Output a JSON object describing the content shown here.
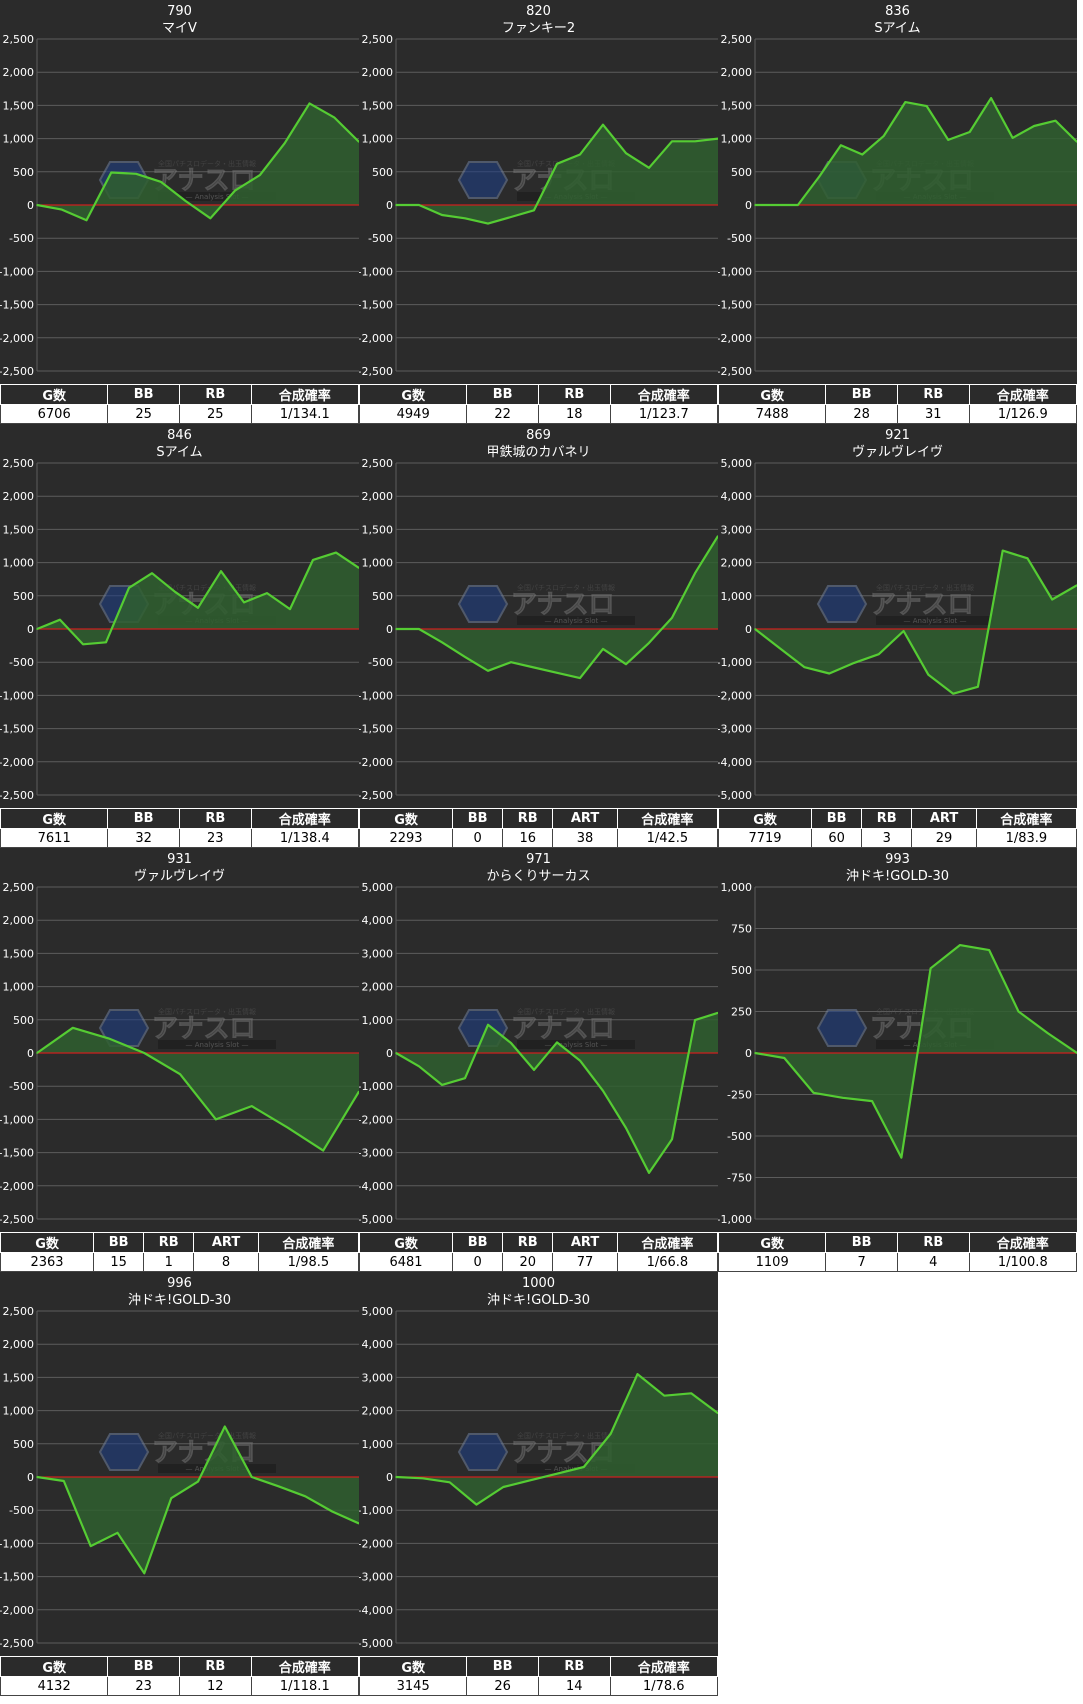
{
  "colors": {
    "panel_bg": "#2b2b2b",
    "grid": "#5c5c5c",
    "zero_line": "#cc1f1f",
    "line": "#55cc33",
    "fill": "#2f5f2f",
    "text": "#ffffff"
  },
  "watermark": {
    "text": "アナスロ",
    "subtitle": "Analysis Slot",
    "tagline": "全国パチスロデータ・出玉情報"
  },
  "panels": [
    {
      "number": "790",
      "machine": "マイV",
      "headers": [
        "G数",
        "BB",
        "RB",
        "合成確率"
      ],
      "values": [
        "6706",
        "25",
        "25",
        "1/134.1"
      ],
      "chart_data": {
        "type": "area",
        "ylim": [
          -2500,
          2500
        ],
        "yticks": [
          2500,
          2000,
          1500,
          1000,
          500,
          0,
          -500,
          -1000,
          -1500,
          -2000,
          -2500
        ],
        "ytick_labels": [
          "2,500",
          "2,000",
          "1,500",
          "1,000",
          "500",
          "0",
          "-500",
          "-1,000",
          "-1,500",
          "-2,000",
          "-2,500"
        ],
        "values": [
          0,
          -70,
          -230,
          490,
          470,
          350,
          60,
          -200,
          220,
          450,
          930,
          1530,
          1320,
          950
        ]
      }
    },
    {
      "number": "820",
      "machine": "ファンキー2",
      "headers": [
        "G数",
        "BB",
        "RB",
        "合成確率"
      ],
      "values": [
        "4949",
        "22",
        "18",
        "1/123.7"
      ],
      "chart_data": {
        "type": "area",
        "ylim": [
          -2500,
          2500
        ],
        "yticks": [
          2500,
          2000,
          1500,
          1000,
          500,
          0,
          -500,
          -1000,
          -1500,
          -2000,
          -2500
        ],
        "ytick_labels": [
          "2,500",
          "2,000",
          "1,500",
          "1,000",
          "500",
          "0",
          "-500",
          "-1,000",
          "-1,500",
          "-2,000",
          "-2,500"
        ],
        "values": [
          0,
          0,
          -150,
          -200,
          -280,
          -180,
          -80,
          620,
          760,
          1210,
          780,
          560,
          960,
          960,
          1000
        ]
      }
    },
    {
      "number": "836",
      "machine": "Sアイム",
      "headers": [
        "G数",
        "BB",
        "RB",
        "合成確率"
      ],
      "values": [
        "7488",
        "28",
        "31",
        "1/126.9"
      ],
      "chart_data": {
        "type": "area",
        "ylim": [
          -2500,
          2500
        ],
        "yticks": [
          2500,
          2000,
          1500,
          1000,
          500,
          0,
          -500,
          -1000,
          -1500,
          -2000,
          -2500
        ],
        "ytick_labels": [
          "2,500",
          "2,000",
          "1,500",
          "1,000",
          "500",
          "0",
          "-500",
          "-1,000",
          "-1,500",
          "-2,000",
          "-2,500"
        ],
        "values": [
          0,
          0,
          0,
          430,
          900,
          760,
          1040,
          1550,
          1490,
          980,
          1100,
          1610,
          1010,
          1190,
          1270,
          950
        ]
      }
    },
    {
      "number": "846",
      "machine": "Sアイム",
      "headers": [
        "G数",
        "BB",
        "RB",
        "合成確率"
      ],
      "values": [
        "7611",
        "32",
        "23",
        "1/138.4"
      ],
      "chart_data": {
        "type": "area",
        "ylim": [
          -2500,
          2500
        ],
        "yticks": [
          2500,
          2000,
          1500,
          1000,
          500,
          0,
          -500,
          -1000,
          -1500,
          -2000,
          -2500
        ],
        "ytick_labels": [
          "2,500",
          "2,000",
          "1,500",
          "1,000",
          "500",
          "0",
          "-500",
          "-1,000",
          "-1,500",
          "-2,000",
          "-2,500"
        ],
        "values": [
          0,
          140,
          -230,
          -200,
          620,
          840,
          560,
          320,
          870,
          400,
          540,
          300,
          1040,
          1150,
          920
        ]
      }
    },
    {
      "number": "869",
      "machine": "甲鉄城のカバネリ",
      "headers": [
        "G数",
        "BB",
        "RB",
        "ART",
        "合成確率"
      ],
      "values": [
        "2293",
        "0",
        "16",
        "38",
        "1/42.5"
      ],
      "chart_data": {
        "type": "area",
        "ylim": [
          -2500,
          2500
        ],
        "yticks": [
          2500,
          2000,
          1500,
          1000,
          500,
          0,
          -500,
          -1000,
          -1500,
          -2000,
          -2500
        ],
        "ytick_labels": [
          "2,500",
          "2,000",
          "1,500",
          "1,000",
          "500",
          "0",
          "-500",
          "-1,000",
          "-1,500",
          "-2,000",
          "-2,500"
        ],
        "values": [
          0,
          0,
          -200,
          -420,
          -630,
          -500,
          -580,
          -660,
          -740,
          -300,
          -530,
          -210,
          170,
          840,
          1400
        ]
      }
    },
    {
      "number": "921",
      "machine": "ヴァルヴレイヴ",
      "headers": [
        "G数",
        "BB",
        "RB",
        "ART",
        "合成確率"
      ],
      "values": [
        "7719",
        "60",
        "3",
        "29",
        "1/83.9"
      ],
      "chart_data": {
        "type": "area",
        "ylim": [
          -5000,
          5000
        ],
        "yticks": [
          5000,
          4000,
          3000,
          2000,
          1000,
          0,
          -1000,
          -2000,
          -3000,
          -4000,
          -5000
        ],
        "ytick_labels": [
          "5,000",
          "4,000",
          "3,000",
          "2,000",
          "1,000",
          "0",
          "-1,000",
          "-2,000",
          "-3,000",
          "-4,000",
          "-5,000"
        ],
        "values": [
          0,
          -580,
          -1150,
          -1340,
          -1020,
          -760,
          -60,
          -1380,
          -1950,
          -1740,
          2360,
          2130,
          890,
          1320
        ]
      }
    },
    {
      "number": "931",
      "machine": "ヴァルヴレイヴ",
      "headers": [
        "G数",
        "BB",
        "RB",
        "ART",
        "合成確率"
      ],
      "values": [
        "2363",
        "15",
        "1",
        "8",
        "1/98.5"
      ],
      "chart_data": {
        "type": "area",
        "ylim": [
          -2500,
          2500
        ],
        "yticks": [
          2500,
          2000,
          1500,
          1000,
          500,
          0,
          -500,
          -1000,
          -1500,
          -2000,
          -2500
        ],
        "ytick_labels": [
          "2,500",
          "2,000",
          "1,500",
          "1,000",
          "500",
          "0",
          "-500",
          "-1,000",
          "-1,500",
          "-2,000",
          "-2,500"
        ],
        "values": [
          0,
          380,
          220,
          0,
          -320,
          -1000,
          -800,
          -1120,
          -1470,
          -580
        ]
      }
    },
    {
      "number": "971",
      "machine": "からくりサーカス",
      "headers": [
        "G数",
        "BB",
        "RB",
        "ART",
        "合成確率"
      ],
      "values": [
        "6481",
        "0",
        "20",
        "77",
        "1/66.8"
      ],
      "chart_data": {
        "type": "area",
        "ylim": [
          -5000,
          5000
        ],
        "yticks": [
          5000,
          4000,
          3000,
          2000,
          1000,
          0,
          -1000,
          -2000,
          -3000,
          -4000,
          -5000
        ],
        "ytick_labels": [
          "5,000",
          "4,000",
          "3,000",
          "2,000",
          "1,000",
          "0",
          "-1,000",
          "-2,000",
          "-3,000",
          "-4,000",
          "-5,000"
        ],
        "values": [
          0,
          -400,
          -960,
          -760,
          850,
          300,
          -510,
          320,
          -230,
          -1140,
          -2260,
          -3610,
          -2600,
          990,
          1210
        ]
      }
    },
    {
      "number": "993",
      "machine": "沖ドキ!GOLD-30",
      "headers": [
        "G数",
        "BB",
        "RB",
        "合成確率"
      ],
      "values": [
        "1109",
        "7",
        "4",
        "1/100.8"
      ],
      "chart_data": {
        "type": "area",
        "ylim": [
          -1000,
          1000
        ],
        "yticks": [
          1000,
          750,
          500,
          250,
          0,
          -250,
          -500,
          -750,
          -1000
        ],
        "ytick_labels": [
          "1,000",
          "750",
          "500",
          "250",
          "0",
          "-250",
          "-500",
          "-750",
          "-1,000"
        ],
        "values": [
          0,
          -30,
          -240,
          -270,
          -290,
          -630,
          510,
          650,
          620,
          250,
          120,
          0
        ]
      }
    },
    {
      "number": "996",
      "machine": "沖ドキ!GOLD-30",
      "headers": [
        "G数",
        "BB",
        "RB",
        "合成確率"
      ],
      "values": [
        "4132",
        "23",
        "12",
        "1/118.1"
      ],
      "chart_data": {
        "type": "area",
        "ylim": [
          -2500,
          2500
        ],
        "yticks": [
          2500,
          2000,
          1500,
          1000,
          500,
          0,
          -500,
          -1000,
          -1500,
          -2000,
          -2500
        ],
        "ytick_labels": [
          "2,500",
          "2,000",
          "1,500",
          "1,000",
          "500",
          "0",
          "-500",
          "-1,000",
          "-1,500",
          "-2,000",
          "-2,500"
        ],
        "values": [
          0,
          -60,
          -1040,
          -840,
          -1450,
          -320,
          -70,
          760,
          0,
          -140,
          -290,
          -520,
          -700
        ]
      }
    },
    {
      "number": "1000",
      "machine": "沖ドキ!GOLD-30",
      "headers": [
        "G数",
        "BB",
        "RB",
        "合成確率"
      ],
      "values": [
        "3145",
        "26",
        "14",
        "1/78.6"
      ],
      "chart_data": {
        "type": "area",
        "ylim": [
          -5000,
          5000
        ],
        "yticks": [
          5000,
          4000,
          3000,
          2000,
          1000,
          0,
          -1000,
          -2000,
          -3000,
          -4000,
          -5000
        ],
        "ytick_labels": [
          "5,000",
          "4,000",
          "3,000",
          "2,000",
          "1,000",
          "0",
          "-1,000",
          "-2,000",
          "-3,000",
          "-4,000",
          "-5,000"
        ],
        "values": [
          0,
          -40,
          -160,
          -830,
          -300,
          -100,
          100,
          300,
          1300,
          3100,
          2450,
          2520,
          1920
        ]
      }
    }
  ]
}
